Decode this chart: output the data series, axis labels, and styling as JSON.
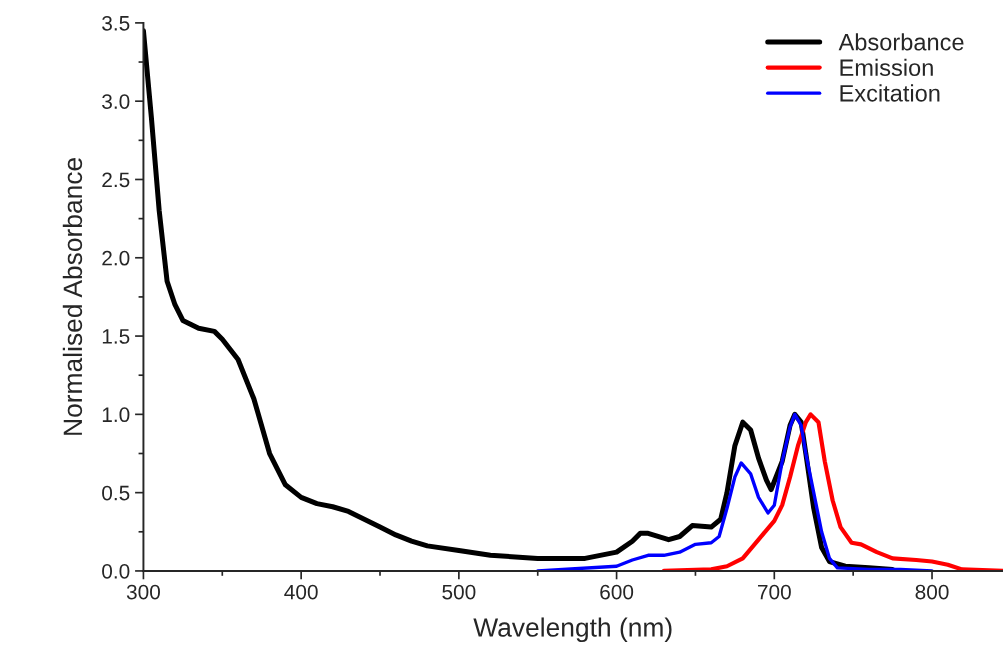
{
  "chart_data": {
    "type": "line",
    "xlabel": "Wavelength (nm)",
    "ylabel": "Normalised Absorbance",
    "xlim": [
      300,
      845
    ],
    "ylim": [
      0,
      3.5
    ],
    "xticks": [
      300,
      {
        "value": 350,
        "label": null
      },
      400,
      {
        "value": 450,
        "label": null
      },
      500,
      {
        "value": 550,
        "label": null
      },
      600,
      {
        "value": 650,
        "label": null
      },
      700,
      {
        "value": 750,
        "label": null
      },
      800
    ],
    "yticks": [
      {
        "value": 0,
        "label": "0.0"
      },
      {
        "value": 0.25,
        "label": null
      },
      {
        "value": 0.5,
        "label": "0.5"
      },
      {
        "value": 0.75,
        "label": null
      },
      {
        "value": 1,
        "label": "1.0"
      },
      {
        "value": 1.25,
        "label": null
      },
      {
        "value": 1.5,
        "label": "1.5"
      },
      {
        "value": 1.75,
        "label": null
      },
      {
        "value": 2,
        "label": "2.0"
      },
      {
        "value": 2.25,
        "label": null
      },
      {
        "value": 2.5,
        "label": "2.5"
      },
      {
        "value": 2.75,
        "label": null
      },
      {
        "value": 3,
        "label": "3.0"
      },
      {
        "value": 3.25,
        "label": null
      },
      {
        "value": 3.5,
        "label": "3.5"
      }
    ],
    "grid": false,
    "legend": "top right",
    "marker": "none",
    "line_style": "solid",
    "series": [
      {
        "name": "Absorbance",
        "color": "#000000",
        "x": [
          300,
          305,
          310,
          315,
          320,
          325,
          335,
          345,
          350,
          360,
          370,
          380,
          390,
          400,
          410,
          420,
          430,
          440,
          450,
          460,
          470,
          480,
          500,
          520,
          550,
          580,
          600,
          610,
          615,
          620,
          633,
          640,
          648,
          660,
          666,
          670,
          675,
          680,
          685,
          690,
          695,
          698,
          705,
          710,
          713,
          717,
          720,
          725,
          730,
          735,
          745,
          760,
          775
        ],
        "values": [
          3.45,
          2.9,
          2.3,
          1.85,
          1.7,
          1.6,
          1.55,
          1.53,
          1.48,
          1.35,
          1.1,
          0.75,
          0.55,
          0.47,
          0.43,
          0.41,
          0.38,
          0.33,
          0.28,
          0.23,
          0.19,
          0.16,
          0.13,
          0.1,
          0.08,
          0.08,
          0.12,
          0.19,
          0.24,
          0.24,
          0.2,
          0.22,
          0.29,
          0.28,
          0.33,
          0.5,
          0.8,
          0.95,
          0.9,
          0.72,
          0.58,
          0.52,
          0.7,
          0.93,
          1.0,
          0.95,
          0.75,
          0.4,
          0.15,
          0.06,
          0.03,
          0.02,
          0.01
        ]
      },
      {
        "name": "Emission",
        "color": "#ff0000",
        "x": [
          630,
          660,
          670,
          680,
          690,
          700,
          705,
          710,
          715,
          720,
          723,
          728,
          732,
          737,
          742,
          749,
          755,
          765,
          775,
          790,
          800,
          810,
          819,
          845
        ],
        "values": [
          0.0,
          0.01,
          0.03,
          0.08,
          0.2,
          0.32,
          0.42,
          0.6,
          0.8,
          0.95,
          1.0,
          0.95,
          0.7,
          0.45,
          0.28,
          0.18,
          0.17,
          0.12,
          0.08,
          0.07,
          0.06,
          0.04,
          0.01,
          0.0
        ]
      },
      {
        "name": "Excitation",
        "color": "#0000ff",
        "x": [
          550,
          600,
          610,
          620,
          630,
          640,
          650,
          660,
          665,
          670,
          675,
          679,
          685,
          690,
          696,
          700,
          705,
          710,
          713,
          717,
          720,
          725,
          730,
          735,
          740,
          760,
          780,
          800
        ],
        "values": [
          0.0,
          0.03,
          0.07,
          0.1,
          0.1,
          0.12,
          0.17,
          0.18,
          0.22,
          0.4,
          0.6,
          0.69,
          0.62,
          0.47,
          0.37,
          0.42,
          0.7,
          0.92,
          1.0,
          0.93,
          0.75,
          0.5,
          0.25,
          0.08,
          0.02,
          0.01,
          0.01,
          0.0
        ]
      }
    ]
  }
}
